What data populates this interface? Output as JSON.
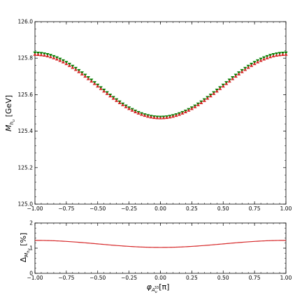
{
  "chart_data": [
    {
      "type": "scatter",
      "panel": "top",
      "ylabel": {
        "main": "M",
        "sub": "h",
        "subsub": "u",
        "unit": " [GeV]"
      },
      "xlim": [
        -1.0,
        1.0
      ],
      "ylim": [
        125.0,
        126.0
      ],
      "xticks": [
        "−1.00",
        "−0.75",
        "−0.50",
        "−0.25",
        "0.00",
        "0.25",
        "0.50",
        "0.75",
        "1.00"
      ],
      "yticks": [
        "125.0",
        "125.2",
        "125.4",
        "125.6",
        "125.8",
        "126.0"
      ],
      "grid": false,
      "series": [
        {
          "marker": "triangle-down",
          "color": "#008000",
          "curve": {
            "a": 125.653,
            "b": 0.176,
            "k": 0.8
          }
        },
        {
          "marker": "triangle-up",
          "color": "#d62728",
          "curve": {
            "a": 125.646,
            "b": 0.174,
            "k": 0.8
          }
        }
      ],
      "x": [
        -1.0,
        -0.75,
        -0.5,
        -0.25,
        0.0,
        0.25,
        0.5,
        0.75,
        1.0
      ],
      "values_series1": [
        125.829,
        125.79,
        125.69,
        125.53,
        125.477,
        125.53,
        125.69,
        125.79,
        125.829
      ],
      "values_series2": [
        125.82,
        125.78,
        125.68,
        125.52,
        125.472,
        125.52,
        125.68,
        125.78,
        125.82
      ]
    },
    {
      "type": "line",
      "panel": "bottom",
      "xlabel": {
        "main": "φ",
        "sub": "A",
        "subsub": "u",
        "subsup": "33",
        "unit": "[π]"
      },
      "ylabel": {
        "main": "Δ",
        "sub": "M",
        "subsub": "h",
        "subsubsub": "u",
        "unit": " [%]"
      },
      "xlim": [
        -1.0,
        1.0
      ],
      "ylim": [
        0,
        2
      ],
      "xticks": [
        "−1.00",
        "−0.75",
        "−0.50",
        "−0.25",
        "0.00",
        "0.25",
        "0.50",
        "0.75",
        "1.00"
      ],
      "yticks": [
        "0",
        "1",
        "2"
      ],
      "grid": false,
      "color": "#d62728",
      "x": [
        -1.0,
        -0.75,
        -0.5,
        -0.25,
        0.0,
        0.25,
        0.5,
        0.75,
        1.0
      ],
      "y": [
        1.31,
        1.28,
        1.18,
        1.06,
        1.03,
        1.06,
        1.18,
        1.28,
        1.31
      ]
    }
  ]
}
